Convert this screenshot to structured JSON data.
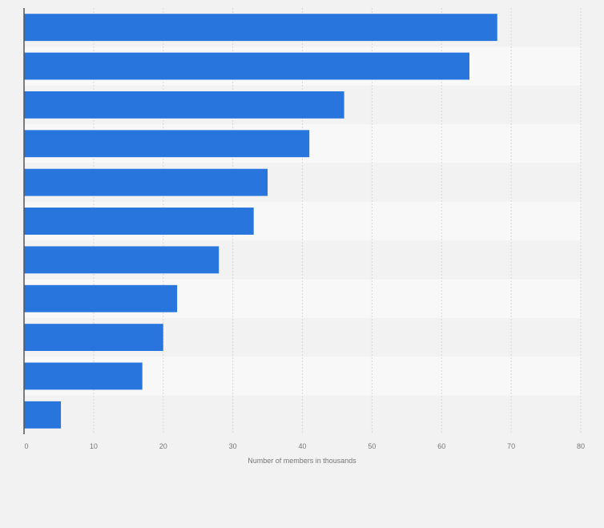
{
  "chart_data": {
    "type": "bar",
    "orientation": "horizontal",
    "title": "",
    "xlabel": "Number of members in thousands",
    "ylabel": "",
    "values": [
      68,
      64,
      46,
      41,
      35,
      33,
      28,
      22,
      20,
      17,
      5.3
    ],
    "xlim": [
      0,
      80
    ],
    "xticks": [
      "0",
      "10",
      "20",
      "30",
      "40",
      "50",
      "60",
      "70",
      "80"
    ],
    "grid": true,
    "bar_color": "#2876dd"
  }
}
